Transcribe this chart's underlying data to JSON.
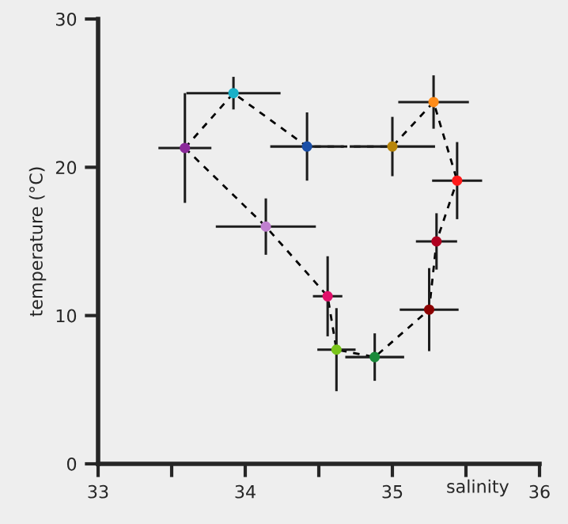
{
  "chart_data": {
    "type": "scatter",
    "xlabel": "salinity",
    "ylabel": "temperature (°C)",
    "xlim": [
      33,
      36
    ],
    "ylim": [
      0,
      30
    ],
    "xticks": [
      33,
      {
        "value": 33.5,
        "label": null
      },
      34,
      {
        "value": 34.5,
        "label": null
      },
      35,
      {
        "value": 35.5,
        "label": null
      },
      36
    ],
    "yticks": [
      0,
      10,
      20,
      30
    ],
    "grid": false,
    "legend": false,
    "series": [
      {
        "type": "line",
        "color": "#000000",
        "line_style": "dashed",
        "marker": "none",
        "x": [
          33.59,
          33.92,
          34.42,
          35.0,
          35.28,
          35.44
        ],
        "values": [
          21.3,
          25.0,
          21.4,
          21.4,
          24.4,
          19.1
        ]
      },
      {
        "type": "line",
        "color": "#000000",
        "line_style": "dashed",
        "marker": "none",
        "x": [
          33.59,
          34.14,
          34.56,
          34.62,
          34.88,
          35.25,
          35.3,
          35.44
        ],
        "values": [
          21.3,
          16.0,
          11.3,
          7.7,
          7.2,
          10.4,
          15.0,
          19.1
        ]
      },
      {
        "type": "scatter",
        "marker": "circle",
        "x": [
          33.59,
          33.92,
          34.42,
          35.0,
          35.28,
          35.44,
          35.3,
          35.25,
          34.88,
          34.62,
          34.56,
          34.14
        ],
        "values": [
          21.3,
          25.0,
          21.4,
          21.4,
          24.4,
          19.1,
          15.0,
          10.4,
          7.2,
          7.7,
          11.3,
          16.0
        ],
        "colors": [
          "#8b2a9a",
          "#1ab0c8",
          "#1a4fa8",
          "#b8860b",
          "#ff8c1a",
          "#ff1a1a",
          "#b00020",
          "#8b0000",
          "#1a8a3a",
          "#7ac41a",
          "#e0106a",
          "#c080d0"
        ],
        "xerrors": [
          0.18,
          0.32,
          0.25,
          0.29,
          0.24,
          0.17,
          0.14,
          0.2,
          0.2,
          0.13,
          0.1,
          0.34
        ],
        "errors": [
          3.7,
          1.1,
          2.3,
          2.0,
          1.8,
          2.6,
          1.9,
          2.8,
          1.6,
          2.8,
          2.7,
          1.9
        ]
      }
    ]
  }
}
